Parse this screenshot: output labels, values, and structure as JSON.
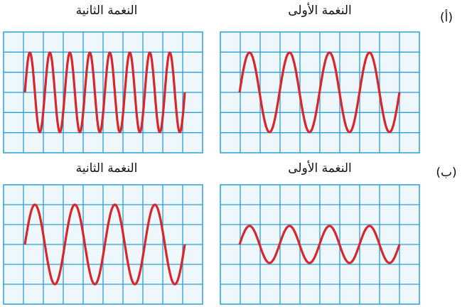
{
  "rows": [
    {
      "label": "(أ)",
      "first": "النغمة الأولى",
      "second": "النغمة الثانية"
    },
    {
      "label": "(ب)",
      "first": "النغمة الأولى",
      "second": "النغمة الثانية"
    }
  ]
}
